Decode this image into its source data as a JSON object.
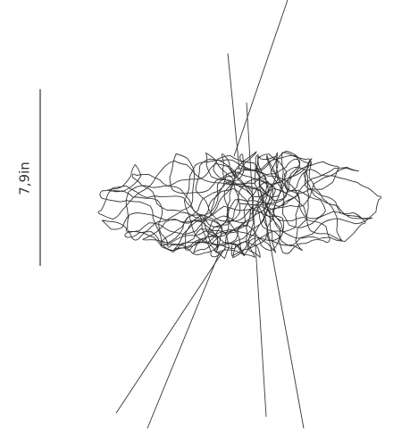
{
  "dimension_label": "7,9in"
}
